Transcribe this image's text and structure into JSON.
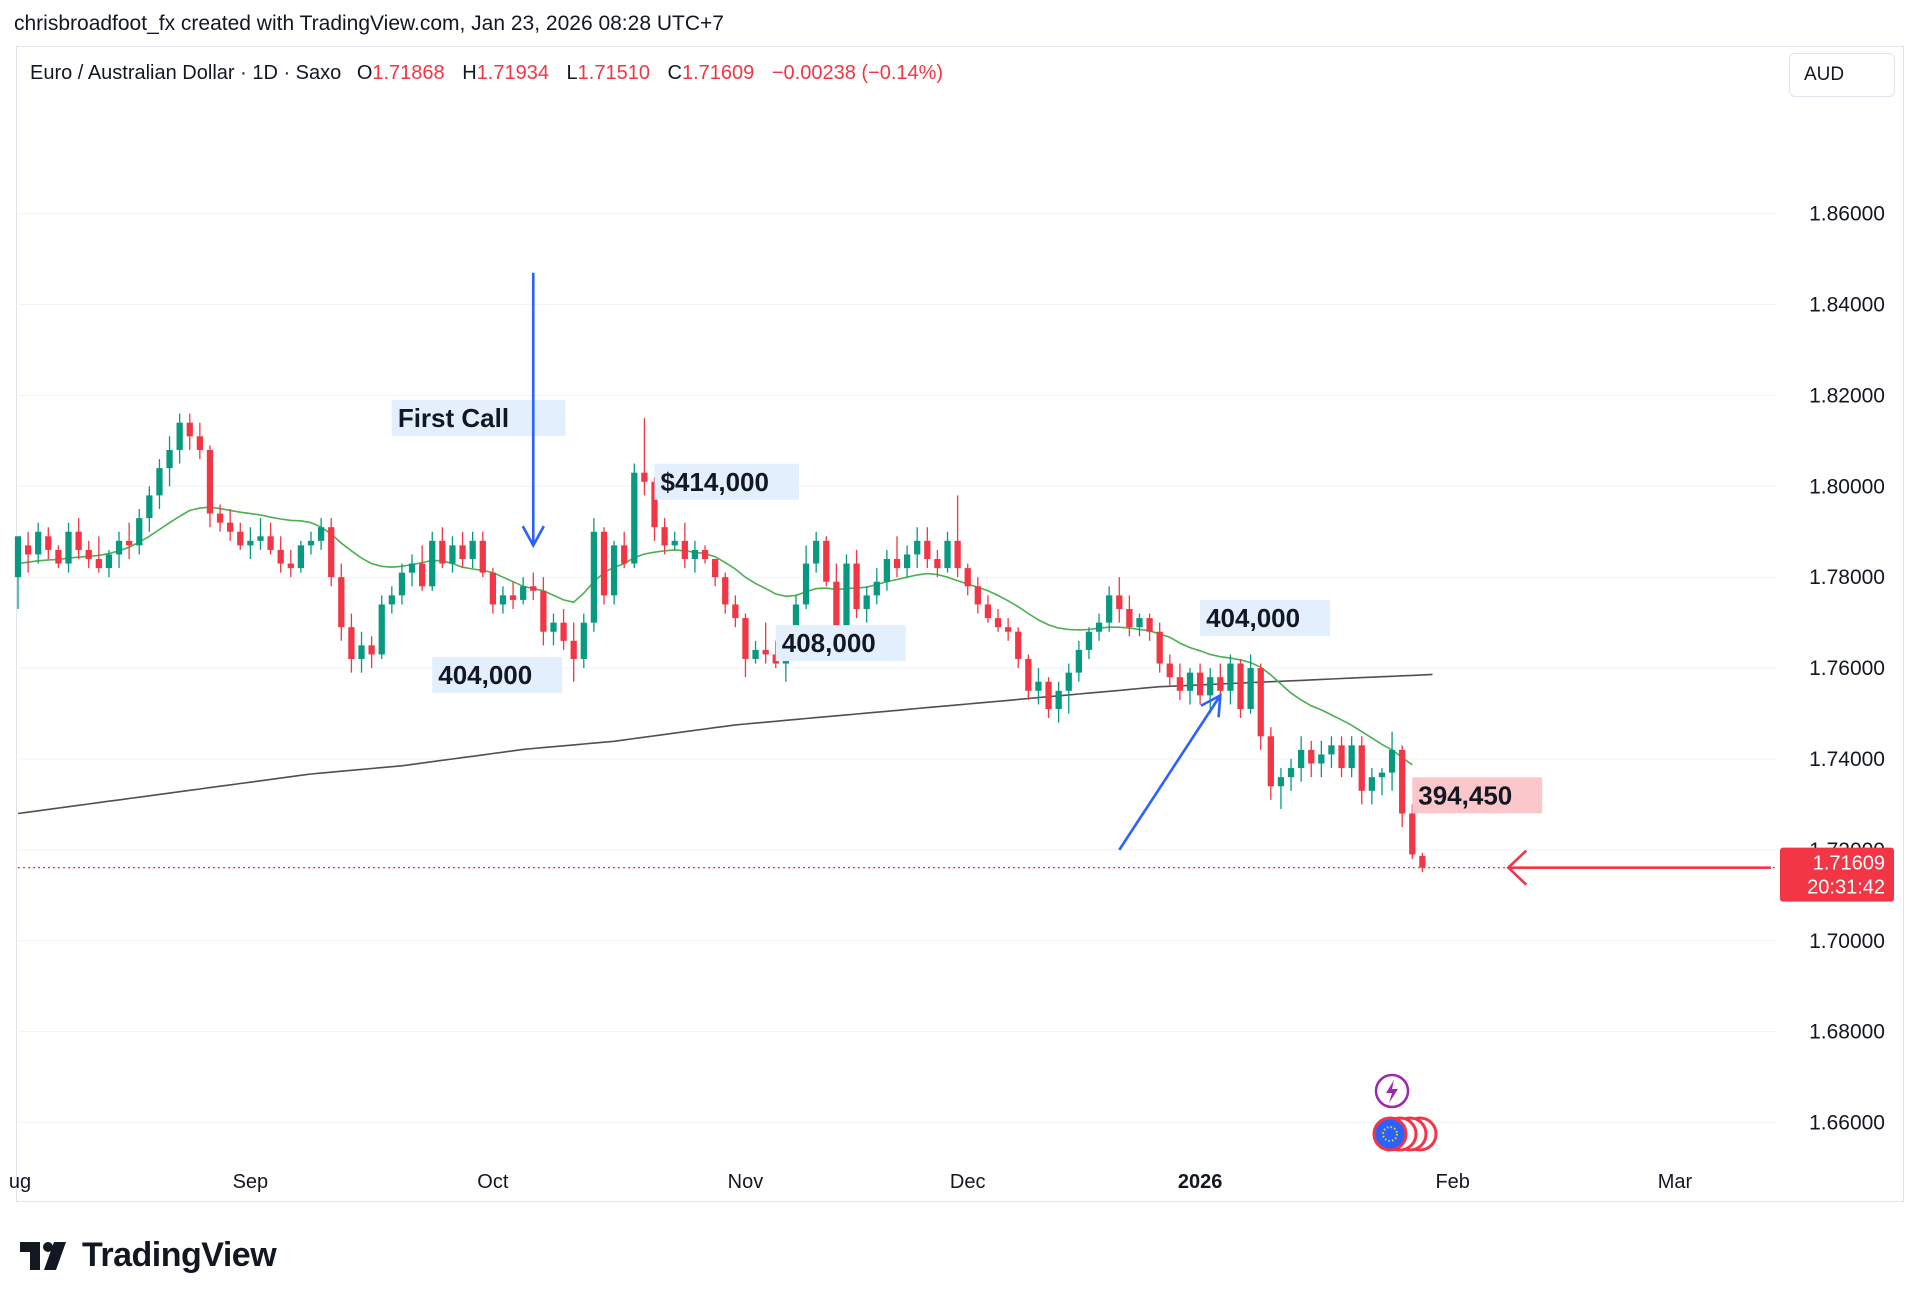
{
  "header": {
    "credit": "chrisbroadfoot_fx created with TradingView.com, Jan 23, 2026 08:28 UTC+7"
  },
  "legend": {
    "symbol": "Euro / Australian Dollar · 1D · Saxo",
    "o_label": "O",
    "o_value": "1.71868",
    "h_label": "H",
    "h_value": "1.71934",
    "l_label": "L",
    "l_value": "1.71510",
    "c_label": "C",
    "c_value": "1.71609",
    "change": "−0.00238 (−0.14%)"
  },
  "currency_button": {
    "label": "AUD"
  },
  "brand": {
    "name": "TradingView",
    "icon": "tradingview-logo-icon"
  },
  "colors": {
    "up": "#089981",
    "down": "#f23645",
    "ma_fast": "#4caf50",
    "ma_slow": "#505050",
    "annotation_arrow": "#2962ff",
    "price_line": "#f23645",
    "event_purple": "#9c27b0",
    "event_eu": "#2962ff"
  },
  "price_label": {
    "price": "1.71609",
    "countdown": "20:31:42"
  },
  "chart_data": {
    "type": "candlestick",
    "symbol": "EURAUD",
    "interval": "1D",
    "ylim": [
      1.65,
      1.885
    ],
    "y_ticks": [
      "1.86000",
      "1.84000",
      "1.82000",
      "1.80000",
      "1.78000",
      "1.76000",
      "1.74000",
      "1.72000",
      "1.70000",
      "1.68000",
      "1.66000"
    ],
    "x_ticks": [
      {
        "label": "ug",
        "bar": 0.2,
        "bold": false
      },
      {
        "label": "Sep",
        "bar": 23,
        "bold": false
      },
      {
        "label": "Oct",
        "bar": 47,
        "bold": false
      },
      {
        "label": "Nov",
        "bar": 72,
        "bold": false
      },
      {
        "label": "Dec",
        "bar": 94,
        "bold": false
      },
      {
        "label": "2026",
        "bar": 117,
        "bold": true
      },
      {
        "label": "Feb",
        "bar": 142,
        "bold": false
      },
      {
        "label": "Mar",
        "bar": 164,
        "bold": false
      }
    ],
    "x_range": [
      0,
      174
    ],
    "candles": [
      [
        1.78,
        1.789,
        1.773,
        1.789
      ],
      [
        1.787,
        1.79,
        1.781,
        1.785
      ],
      [
        1.785,
        1.792,
        1.783,
        1.79
      ],
      [
        1.789,
        1.791,
        1.784,
        1.786
      ],
      [
        1.786,
        1.787,
        1.782,
        1.783
      ],
      [
        1.783,
        1.792,
        1.781,
        1.79
      ],
      [
        1.79,
        1.793,
        1.784,
        1.786
      ],
      [
        1.786,
        1.788,
        1.782,
        1.784
      ],
      [
        1.784,
        1.789,
        1.781,
        1.782
      ],
      [
        1.782,
        1.786,
        1.78,
        1.785
      ],
      [
        1.785,
        1.79,
        1.782,
        1.788
      ],
      [
        1.788,
        1.792,
        1.784,
        1.787
      ],
      [
        1.787,
        1.795,
        1.785,
        1.793
      ],
      [
        1.793,
        1.8,
        1.79,
        1.798
      ],
      [
        1.798,
        1.806,
        1.795,
        1.804
      ],
      [
        1.804,
        1.811,
        1.8,
        1.808
      ],
      [
        1.808,
        1.816,
        1.805,
        1.814
      ],
      [
        1.814,
        1.816,
        1.808,
        1.811
      ],
      [
        1.811,
        1.814,
        1.806,
        1.808
      ],
      [
        1.808,
        1.809,
        1.791,
        1.794
      ],
      [
        1.794,
        1.796,
        1.79,
        1.792
      ],
      [
        1.792,
        1.795,
        1.788,
        1.79
      ],
      [
        1.79,
        1.792,
        1.786,
        1.787
      ],
      [
        1.787,
        1.791,
        1.784,
        1.788
      ],
      [
        1.788,
        1.793,
        1.786,
        1.789
      ],
      [
        1.789,
        1.792,
        1.785,
        1.786
      ],
      [
        1.786,
        1.789,
        1.781,
        1.783
      ],
      [
        1.783,
        1.786,
        1.78,
        1.782
      ],
      [
        1.782,
        1.788,
        1.781,
        1.787
      ],
      [
        1.787,
        1.79,
        1.785,
        1.788
      ],
      [
        1.788,
        1.793,
        1.786,
        1.791
      ],
      [
        1.791,
        1.793,
        1.778,
        1.78
      ],
      [
        1.78,
        1.783,
        1.766,
        1.769
      ],
      [
        1.769,
        1.772,
        1.759,
        1.762
      ],
      [
        1.762,
        1.768,
        1.759,
        1.765
      ],
      [
        1.765,
        1.767,
        1.76,
        1.763
      ],
      [
        1.763,
        1.776,
        1.762,
        1.774
      ],
      [
        1.774,
        1.778,
        1.772,
        1.776
      ],
      [
        1.776,
        1.783,
        1.774,
        1.781
      ],
      [
        1.781,
        1.785,
        1.778,
        1.783
      ],
      [
        1.783,
        1.787,
        1.777,
        1.778
      ],
      [
        1.778,
        1.79,
        1.777,
        1.788
      ],
      [
        1.788,
        1.791,
        1.782,
        1.783
      ],
      [
        1.783,
        1.789,
        1.781,
        1.787
      ],
      [
        1.787,
        1.79,
        1.782,
        1.784
      ],
      [
        1.784,
        1.79,
        1.782,
        1.788
      ],
      [
        1.788,
        1.79,
        1.78,
        1.781
      ],
      [
        1.781,
        1.782,
        1.772,
        1.774
      ],
      [
        1.774,
        1.778,
        1.772,
        1.776
      ],
      [
        1.776,
        1.779,
        1.773,
        1.775
      ],
      [
        1.775,
        1.78,
        1.774,
        1.778
      ],
      [
        1.778,
        1.781,
        1.775,
        1.777
      ],
      [
        1.777,
        1.78,
        1.765,
        1.768
      ],
      [
        1.768,
        1.772,
        1.765,
        1.77
      ],
      [
        1.77,
        1.773,
        1.764,
        1.766
      ],
      [
        1.766,
        1.77,
        1.757,
        1.762
      ],
      [
        1.762,
        1.772,
        1.76,
        1.77
      ],
      [
        1.77,
        1.793,
        1.768,
        1.79
      ],
      [
        1.79,
        1.791,
        1.774,
        1.776
      ],
      [
        1.776,
        1.788,
        1.774,
        1.787
      ],
      [
        1.787,
        1.79,
        1.782,
        1.783
      ],
      [
        1.783,
        1.805,
        1.782,
        1.803
      ],
      [
        1.803,
        1.815,
        1.798,
        1.801
      ],
      [
        1.801,
        1.802,
        1.788,
        1.791
      ],
      [
        1.791,
        1.793,
        1.785,
        1.787
      ],
      [
        1.787,
        1.79,
        1.786,
        1.788
      ],
      [
        1.788,
        1.792,
        1.782,
        1.784
      ],
      [
        1.784,
        1.788,
        1.781,
        1.786
      ],
      [
        1.786,
        1.787,
        1.783,
        1.784
      ],
      [
        1.784,
        1.784,
        1.778,
        1.78
      ],
      [
        1.78,
        1.781,
        1.772,
        1.774
      ],
      [
        1.774,
        1.776,
        1.769,
        1.771
      ],
      [
        1.771,
        1.772,
        1.758,
        1.762
      ],
      [
        1.762,
        1.766,
        1.761,
        1.764
      ],
      [
        1.764,
        1.77,
        1.761,
        1.763
      ],
      [
        1.763,
        1.766,
        1.76,
        1.761
      ],
      [
        1.761,
        1.768,
        1.757,
        1.766
      ],
      [
        1.766,
        1.776,
        1.765,
        1.774
      ],
      [
        1.774,
        1.787,
        1.773,
        1.783
      ],
      [
        1.783,
        1.79,
        1.781,
        1.788
      ],
      [
        1.788,
        1.789,
        1.778,
        1.779
      ],
      [
        1.779,
        1.783,
        1.765,
        1.769
      ],
      [
        1.769,
        1.785,
        1.768,
        1.783
      ],
      [
        1.783,
        1.786,
        1.771,
        1.773
      ],
      [
        1.773,
        1.778,
        1.77,
        1.776
      ],
      [
        1.776,
        1.782,
        1.774,
        1.779
      ],
      [
        1.779,
        1.786,
        1.777,
        1.784
      ],
      [
        1.784,
        1.789,
        1.78,
        1.782
      ],
      [
        1.782,
        1.787,
        1.78,
        1.785
      ],
      [
        1.785,
        1.791,
        1.782,
        1.788
      ],
      [
        1.788,
        1.791,
        1.782,
        1.784
      ],
      [
        1.784,
        1.786,
        1.78,
        1.782
      ],
      [
        1.782,
        1.79,
        1.781,
        1.788
      ],
      [
        1.788,
        1.798,
        1.78,
        1.782
      ],
      [
        1.782,
        1.783,
        1.776,
        1.778
      ],
      [
        1.778,
        1.78,
        1.772,
        1.774
      ],
      [
        1.774,
        1.776,
        1.77,
        1.771
      ],
      [
        1.771,
        1.773,
        1.768,
        1.769
      ],
      [
        1.769,
        1.771,
        1.766,
        1.768
      ],
      [
        1.768,
        1.769,
        1.76,
        1.762
      ],
      [
        1.762,
        1.763,
        1.753,
        1.755
      ],
      [
        1.755,
        1.76,
        1.752,
        1.757
      ],
      [
        1.757,
        1.758,
        1.749,
        1.751
      ],
      [
        1.751,
        1.757,
        1.748,
        1.755
      ],
      [
        1.755,
        1.761,
        1.75,
        1.759
      ],
      [
        1.759,
        1.766,
        1.757,
        1.764
      ],
      [
        1.764,
        1.769,
        1.762,
        1.768
      ],
      [
        1.768,
        1.772,
        1.766,
        1.77
      ],
      [
        1.77,
        1.778,
        1.768,
        1.776
      ],
      [
        1.776,
        1.78,
        1.77,
        1.773
      ],
      [
        1.773,
        1.776,
        1.767,
        1.769
      ],
      [
        1.769,
        1.772,
        1.767,
        1.771
      ],
      [
        1.771,
        1.772,
        1.766,
        1.768
      ],
      [
        1.768,
        1.77,
        1.759,
        1.761
      ],
      [
        1.761,
        1.763,
        1.756,
        1.758
      ],
      [
        1.758,
        1.761,
        1.753,
        1.755
      ],
      [
        1.755,
        1.76,
        1.752,
        1.759
      ],
      [
        1.759,
        1.761,
        1.752,
        1.754
      ],
      [
        1.754,
        1.76,
        1.75,
        1.758
      ],
      [
        1.758,
        1.761,
        1.752,
        1.755
      ],
      [
        1.755,
        1.763,
        1.752,
        1.761
      ],
      [
        1.761,
        1.762,
        1.749,
        1.751
      ],
      [
        1.751,
        1.763,
        1.75,
        1.76
      ],
      [
        1.76,
        1.761,
        1.742,
        1.745
      ],
      [
        1.745,
        1.747,
        1.731,
        1.734
      ],
      [
        1.734,
        1.738,
        1.729,
        1.736
      ],
      [
        1.736,
        1.74,
        1.733,
        1.738
      ],
      [
        1.738,
        1.745,
        1.735,
        1.742
      ],
      [
        1.742,
        1.744,
        1.736,
        1.739
      ],
      [
        1.739,
        1.744,
        1.736,
        1.741
      ],
      [
        1.741,
        1.745,
        1.738,
        1.743
      ],
      [
        1.743,
        1.745,
        1.736,
        1.738
      ],
      [
        1.738,
        1.745,
        1.736,
        1.743
      ],
      [
        1.743,
        1.745,
        1.73,
        1.733
      ],
      [
        1.733,
        1.738,
        1.73,
        1.736
      ],
      [
        1.736,
        1.738,
        1.732,
        1.737
      ],
      [
        1.737,
        1.746,
        1.733,
        1.742
      ],
      [
        1.742,
        1.743,
        1.725,
        1.728
      ],
      [
        1.728,
        1.73,
        1.718,
        1.719
      ],
      [
        1.71868,
        1.71934,
        1.7151,
        1.71609
      ]
    ],
    "ma_fast": [
      1.783,
      1.7833,
      1.7836,
      1.7838,
      1.7839,
      1.7842,
      1.7844,
      1.7846,
      1.7848,
      1.7852,
      1.7858,
      1.7866,
      1.7877,
      1.789,
      1.7905,
      1.792,
      1.7934,
      1.7947,
      1.7952,
      1.7954,
      1.7951,
      1.7947,
      1.7943,
      1.794,
      1.7937,
      1.7932,
      1.7928,
      1.7925,
      1.7924,
      1.792,
      1.791,
      1.7895,
      1.7875,
      1.7858,
      1.7842,
      1.783,
      1.7824,
      1.7822,
      1.7824,
      1.7828,
      1.7832,
      1.7837,
      1.7836,
      1.783,
      1.7822,
      1.7818,
      1.7815,
      1.781,
      1.78,
      1.779,
      1.778,
      1.7775,
      1.777,
      1.776,
      1.775,
      1.7745,
      1.7765,
      1.779,
      1.781,
      1.7822,
      1.783,
      1.7843,
      1.7851,
      1.7855,
      1.7858,
      1.786,
      1.7858,
      1.7855,
      1.7852,
      1.7845,
      1.7832,
      1.7818,
      1.78,
      1.7786,
      1.7775,
      1.7763,
      1.7758,
      1.776,
      1.7768,
      1.7775,
      1.7776,
      1.7773,
      1.7775,
      1.7776,
      1.7778,
      1.7784,
      1.779,
      1.7795,
      1.78,
      1.7805,
      1.7808,
      1.7806,
      1.78,
      1.7792,
      1.7785,
      1.7778,
      1.777,
      1.776,
      1.7748,
      1.7735,
      1.772,
      1.7706,
      1.7695,
      1.7688,
      1.7685,
      1.7684,
      1.7685,
      1.7688,
      1.769,
      1.769,
      1.7688,
      1.7685,
      1.7682,
      1.7675,
      1.7668,
      1.7655,
      1.7645,
      1.7638,
      1.763,
      1.7625,
      1.7622,
      1.7618,
      1.7612,
      1.7602,
      1.7585,
      1.7565,
      1.7545,
      1.753,
      1.7517,
      1.7508,
      1.7497,
      1.7486,
      1.7474,
      1.746,
      1.7446,
      1.7432,
      1.742,
      1.7403,
      1.7387
    ],
    "ma_slow": [
      1.728,
      1.7283,
      1.7286,
      1.7289,
      1.7292,
      1.7295,
      1.7298,
      1.7301,
      1.7304,
      1.7307,
      1.731,
      1.7313,
      1.7316,
      1.7319,
      1.7322,
      1.7325,
      1.7328,
      1.7331,
      1.7334,
      1.7337,
      1.734,
      1.7343,
      1.7346,
      1.7349,
      1.7352,
      1.7355,
      1.7358,
      1.7361,
      1.7364,
      1.7367,
      1.7369,
      1.7371,
      1.7373,
      1.7375,
      1.7377,
      1.7379,
      1.7381,
      1.7383,
      1.7385,
      1.7388,
      1.7391,
      1.7394,
      1.7397,
      1.74,
      1.7403,
      1.7406,
      1.7409,
      1.7412,
      1.7415,
      1.7418,
      1.7421,
      1.7423,
      1.7425,
      1.7427,
      1.7429,
      1.7431,
      1.7433,
      1.7435,
      1.7437,
      1.7439,
      1.7442,
      1.7445,
      1.7448,
      1.7451,
      1.7454,
      1.7457,
      1.746,
      1.7463,
      1.7466,
      1.7469,
      1.7472,
      1.7475,
      1.7477,
      1.7479,
      1.7481,
      1.7483,
      1.7485,
      1.7487,
      1.7489,
      1.7491,
      1.7493,
      1.7495,
      1.7497,
      1.7499,
      1.7501,
      1.7503,
      1.7505,
      1.7507,
      1.7509,
      1.7511,
      1.7513,
      1.7515,
      1.7517,
      1.7519,
      1.7521,
      1.7523,
      1.7525,
      1.7527,
      1.7529,
      1.7531,
      1.7533,
      1.7535,
      1.7537,
      1.7539,
      1.7541,
      1.7543,
      1.7545,
      1.7547,
      1.7549,
      1.7551,
      1.7553,
      1.7555,
      1.7557,
      1.7559,
      1.756,
      1.7561,
      1.7562,
      1.7563,
      1.7564,
      1.7565,
      1.7566,
      1.7567,
      1.7568,
      1.7569,
      1.757,
      1.7571,
      1.7572,
      1.7573,
      1.7574,
      1.7575,
      1.7576,
      1.7577,
      1.7578,
      1.7579,
      1.758,
      1.7581,
      1.7582,
      1.7583,
      1.7584,
      1.7585,
      1.7586
    ],
    "annotations": [
      {
        "text": "First Call",
        "bar": 37,
        "price": 1.815
      },
      {
        "text": "$414,000",
        "bar": 63,
        "price": 1.801
      },
      {
        "text": "404,000",
        "bar": 41,
        "price": 1.7585
      },
      {
        "text": "408,000",
        "bar": 75,
        "price": 1.7655
      },
      {
        "text": "404,000",
        "bar": 117,
        "price": 1.771
      },
      {
        "text": "394,450",
        "bar": 138,
        "price": 1.732
      }
    ],
    "arrows": [
      {
        "from_bar": 51,
        "from_price": 1.847,
        "to_bar": 51,
        "to_price": 1.787
      },
      {
        "from_bar": 109,
        "from_price": 1.72,
        "to_bar": 119,
        "to_price": 1.754
      }
    ],
    "price_arrow": {
      "from_bar": 173.5,
      "to_bar": 147.5,
      "price": 1.71609
    }
  }
}
